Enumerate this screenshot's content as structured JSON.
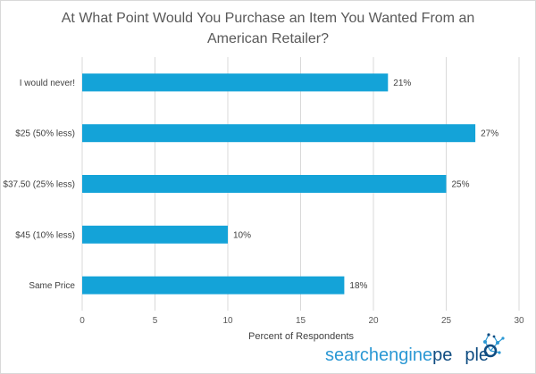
{
  "chart_data": {
    "type": "bar",
    "orientation": "horizontal",
    "title_lines": [
      "At What Point Would You Purchase an Item You Wanted From an",
      "American Retailer?"
    ],
    "categories": [
      "I would never!",
      "$25 (50% less)",
      "$37.50 (25% less)",
      "$45 (10% less)",
      "Same Price"
    ],
    "values": [
      21,
      27,
      25,
      10,
      18
    ],
    "value_labels": [
      "21%",
      "27%",
      "25%",
      "10%",
      "18%"
    ],
    "xlabel": "Percent of Respondents",
    "xlim": [
      0,
      30
    ],
    "xticks": [
      0,
      5,
      10,
      15,
      20,
      25,
      30
    ],
    "grid": "vertical",
    "bar_color": "#14a3d8",
    "grid_color": "#d9d9d9"
  },
  "logo": {
    "part1": "search",
    "part2": "engine",
    "part3": "pe",
    "part4": "ple"
  },
  "colors": {
    "brand_light": "#2b98d4",
    "brand_dark": "#0f4c81"
  }
}
